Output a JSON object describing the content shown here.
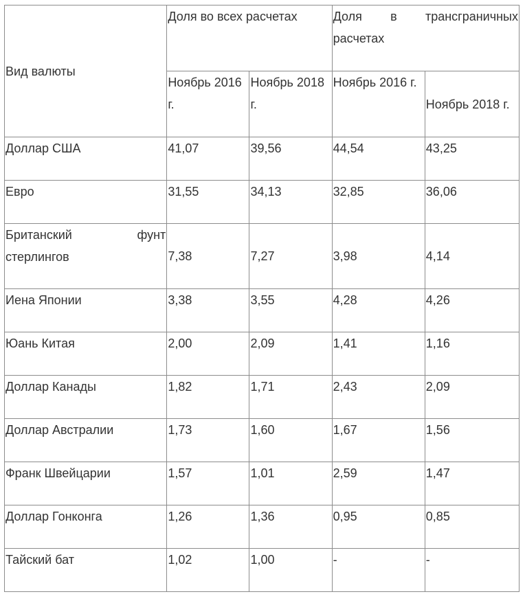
{
  "table": {
    "header": {
      "currency_type": "Вид валюты",
      "share_all": "Доля во всех расчетах",
      "share_cross_border": "Доля в трансграничных расчетах",
      "nov2016_a": "Ноябрь 2016 г.",
      "nov2018_a": "Ноябрь 2018 г.",
      "nov2016_b": "Ноябрь 2016 г.",
      "nov2018_b": "Ноябрь 2018 г."
    },
    "rows": [
      {
        "currency": "Доллар США",
        "all_2016": "41,07",
        "all_2018": "39,56",
        "cb_2016": "44,54",
        "cb_2018": "43,25"
      },
      {
        "currency": "Евро",
        "all_2016": "31,55",
        "all_2018": "34,13",
        "cb_2016": "32,85",
        "cb_2018": "36,06"
      },
      {
        "currency": "Британский фунт стерлингов",
        "all_2016": "7,38",
        "all_2018": "7,27",
        "cb_2016": "3,98",
        "cb_2018": "4,14"
      },
      {
        "currency": "Иена Японии",
        "all_2016": "3,38",
        "all_2018": "3,55",
        "cb_2016": "4,28",
        "cb_2018": "4,26"
      },
      {
        "currency": "Юань Китая",
        "all_2016": "2,00",
        "all_2018": "2,09",
        "cb_2016": "1,41",
        "cb_2018": "1,16"
      },
      {
        "currency": "Доллар Канады",
        "all_2016": "1,82",
        "all_2018": "1,71",
        "cb_2016": "2,43",
        "cb_2018": "2,09"
      },
      {
        "currency": "Доллар Австралии",
        "all_2016": "1,73",
        "all_2018": "1,60",
        "cb_2016": "1,67",
        "cb_2018": "1,56"
      },
      {
        "currency": "Франк Швейцарии",
        "all_2016": "1,57",
        "all_2018": "1,01",
        "cb_2016": "2,59",
        "cb_2018": "1,47"
      },
      {
        "currency": "Доллар Гонконга",
        "all_2016": "1,26",
        "all_2018": "1,36",
        "cb_2016": "0,95",
        "cb_2018": "0,85"
      },
      {
        "currency": "Тайский бат",
        "all_2016": "1,02",
        "all_2018": "1,00",
        "cb_2016": "-",
        "cb_2018": "-"
      }
    ]
  }
}
